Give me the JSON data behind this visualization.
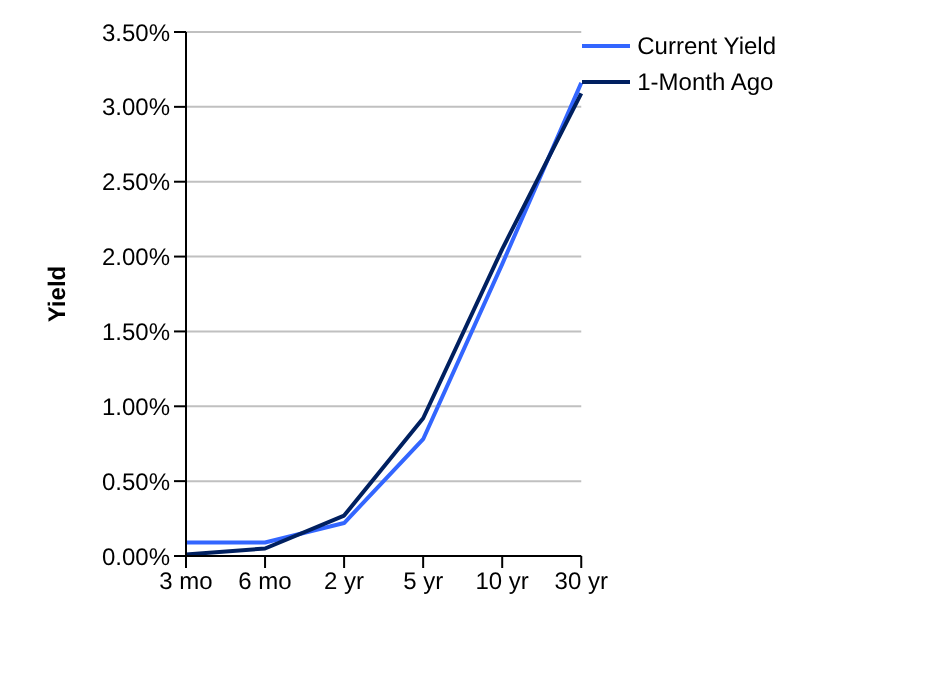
{
  "chart_data": {
    "type": "line",
    "ylabel": "Yield",
    "categories": [
      "3 mo",
      "6 mo",
      "2 yr",
      "5 yr",
      "10 yr",
      "30 yr"
    ],
    "series": [
      {
        "name": "Current Yield",
        "color": "#3366ff",
        "values": [
          0.09,
          0.09,
          0.22,
          0.78,
          1.95,
          3.16
        ]
      },
      {
        "name": "1-Month Ago",
        "color": "#002060",
        "values": [
          0.01,
          0.05,
          0.27,
          0.92,
          2.05,
          3.09
        ]
      }
    ],
    "ylim": [
      0,
      3.5
    ],
    "yticks": [
      {
        "value": 0,
        "label": "0.00%"
      },
      {
        "value": 0.5,
        "label": "0.50%"
      },
      {
        "value": 1,
        "label": "1.00%"
      },
      {
        "value": 1.5,
        "label": "1.50%"
      },
      {
        "value": 2,
        "label": "2.00%"
      },
      {
        "value": 2.5,
        "label": "2.50%"
      },
      {
        "value": 3,
        "label": "3.00%"
      },
      {
        "value": 3.5,
        "label": "3.50%"
      }
    ],
    "grid": "y",
    "legend": "top right",
    "marker": "none",
    "line_style": "solid"
  }
}
